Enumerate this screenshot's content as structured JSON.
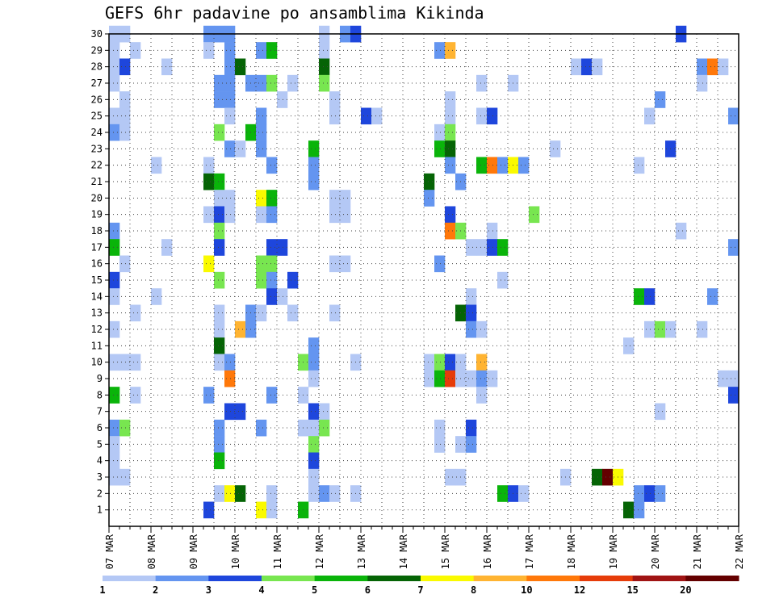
{
  "chart_data": {
    "type": "heatmap",
    "title": "GEFS 6hr padavine po ansamblima Kikinda",
    "xlabel": "",
    "ylabel": "",
    "x_tick_labels": [
      "07 MAR",
      "08 MAR",
      "09 MAR",
      "10 MAR",
      "11 MAR",
      "12 MAR",
      "13 MAR",
      "14 MAR",
      "15 MAR",
      "16 MAR",
      "17 MAR",
      "18 MAR",
      "19 MAR",
      "20 MAR",
      "21 MAR",
      "22 MAR"
    ],
    "x_range_steps": [
      0,
      60
    ],
    "steps_per_day": 4,
    "y_tick_labels": [
      1,
      2,
      3,
      4,
      5,
      6,
      7,
      8,
      9,
      10,
      11,
      12,
      13,
      14,
      15,
      16,
      17,
      18,
      19,
      20,
      21,
      22,
      23,
      24,
      25,
      26,
      27,
      28,
      29,
      30
    ],
    "y_range": [
      0,
      30
    ],
    "grid": true,
    "colorbar": {
      "tick_labels": [
        "1",
        "2",
        "3",
        "4",
        "5",
        "6",
        "7",
        "8",
        "10",
        "12",
        "15",
        "20"
      ],
      "colors": [
        "#b4c8f5",
        "#6495f0",
        "#1e46dc",
        "#78e650",
        "#0ab40a",
        "#056405",
        "#fafa00",
        "#ffb432",
        "#ff780a",
        "#e63c0a",
        "#a01414",
        "#640000"
      ]
    },
    "cells": [
      [
        0,
        30,
        1
      ],
      [
        1,
        30,
        1
      ],
      [
        9,
        30,
        2
      ],
      [
        10,
        30,
        2
      ],
      [
        11,
        30,
        2
      ],
      [
        20,
        30,
        1
      ],
      [
        22,
        30,
        2
      ],
      [
        23,
        30,
        3
      ],
      [
        54,
        30,
        3
      ],
      [
        0,
        29,
        1
      ],
      [
        2,
        29,
        1
      ],
      [
        9,
        29,
        1
      ],
      [
        11,
        29,
        2
      ],
      [
        14,
        29,
        2
      ],
      [
        15,
        29,
        5
      ],
      [
        20,
        29,
        1
      ],
      [
        31,
        29,
        2
      ],
      [
        32,
        29,
        8
      ],
      [
        0,
        28,
        1
      ],
      [
        1,
        28,
        3
      ],
      [
        5,
        28,
        1
      ],
      [
        11,
        28,
        2
      ],
      [
        12,
        28,
        6
      ],
      [
        20,
        28,
        6
      ],
      [
        44,
        28,
        1
      ],
      [
        45,
        28,
        3
      ],
      [
        46,
        28,
        1
      ],
      [
        56,
        28,
        2
      ],
      [
        57,
        28,
        9
      ],
      [
        58,
        28,
        1
      ],
      [
        0,
        27,
        1
      ],
      [
        10,
        27,
        2
      ],
      [
        11,
        27,
        2
      ],
      [
        13,
        27,
        2
      ],
      [
        14,
        27,
        2
      ],
      [
        15,
        27,
        4
      ],
      [
        17,
        27,
        1
      ],
      [
        20,
        27,
        4
      ],
      [
        35,
        27,
        1
      ],
      [
        38,
        27,
        1
      ],
      [
        56,
        27,
        1
      ],
      [
        1,
        26,
        1
      ],
      [
        10,
        26,
        2
      ],
      [
        11,
        26,
        2
      ],
      [
        16,
        26,
        1
      ],
      [
        21,
        26,
        1
      ],
      [
        32,
        26,
        1
      ],
      [
        52,
        26,
        2
      ],
      [
        0,
        25,
        1
      ],
      [
        1,
        25,
        1
      ],
      [
        11,
        25,
        1
      ],
      [
        14,
        25,
        2
      ],
      [
        21,
        25,
        1
      ],
      [
        24,
        25,
        3
      ],
      [
        25,
        25,
        1
      ],
      [
        32,
        25,
        1
      ],
      [
        35,
        25,
        1
      ],
      [
        36,
        25,
        3
      ],
      [
        51,
        25,
        1
      ],
      [
        59,
        25,
        2
      ],
      [
        0,
        24,
        2
      ],
      [
        1,
        24,
        1
      ],
      [
        10,
        24,
        4
      ],
      [
        13,
        24,
        5
      ],
      [
        14,
        24,
        2
      ],
      [
        31,
        24,
        1
      ],
      [
        32,
        24,
        4
      ],
      [
        11,
        23,
        2
      ],
      [
        12,
        23,
        1
      ],
      [
        14,
        23,
        2
      ],
      [
        19,
        23,
        5
      ],
      [
        31,
        23,
        5
      ],
      [
        32,
        23,
        6
      ],
      [
        42,
        23,
        1
      ],
      [
        53,
        23,
        3
      ],
      [
        4,
        22,
        1
      ],
      [
        9,
        22,
        1
      ],
      [
        15,
        22,
        2
      ],
      [
        19,
        22,
        2
      ],
      [
        32,
        22,
        2
      ],
      [
        35,
        22,
        5
      ],
      [
        36,
        22,
        9
      ],
      [
        37,
        22,
        2
      ],
      [
        38,
        22,
        7
      ],
      [
        39,
        22,
        2
      ],
      [
        50,
        22,
        1
      ],
      [
        9,
        21,
        6
      ],
      [
        10,
        21,
        5
      ],
      [
        19,
        21,
        2
      ],
      [
        30,
        21,
        6
      ],
      [
        33,
        21,
        2
      ],
      [
        10,
        20,
        1
      ],
      [
        11,
        20,
        1
      ],
      [
        14,
        20,
        7
      ],
      [
        15,
        20,
        5
      ],
      [
        21,
        20,
        1
      ],
      [
        22,
        20,
        1
      ],
      [
        30,
        20,
        2
      ],
      [
        9,
        19,
        1
      ],
      [
        10,
        19,
        3
      ],
      [
        11,
        19,
        1
      ],
      [
        14,
        19,
        1
      ],
      [
        15,
        19,
        2
      ],
      [
        21,
        19,
        1
      ],
      [
        22,
        19,
        1
      ],
      [
        32,
        19,
        3
      ],
      [
        40,
        19,
        4
      ],
      [
        0,
        18,
        2
      ],
      [
        10,
        18,
        4
      ],
      [
        32,
        18,
        9
      ],
      [
        33,
        18,
        4
      ],
      [
        36,
        18,
        1
      ],
      [
        54,
        18,
        1
      ],
      [
        0,
        17,
        5
      ],
      [
        5,
        17,
        1
      ],
      [
        10,
        17,
        3
      ],
      [
        15,
        17,
        3
      ],
      [
        16,
        17,
        3
      ],
      [
        34,
        17,
        1
      ],
      [
        35,
        17,
        1
      ],
      [
        36,
        17,
        3
      ],
      [
        37,
        17,
        5
      ],
      [
        59,
        17,
        2
      ],
      [
        1,
        16,
        1
      ],
      [
        9,
        16,
        7
      ],
      [
        14,
        16,
        4
      ],
      [
        15,
        16,
        4
      ],
      [
        21,
        16,
        1
      ],
      [
        22,
        16,
        1
      ],
      [
        31,
        16,
        2
      ],
      [
        0,
        15,
        3
      ],
      [
        10,
        15,
        4
      ],
      [
        14,
        15,
        4
      ],
      [
        15,
        15,
        2
      ],
      [
        17,
        15,
        3
      ],
      [
        37,
        15,
        1
      ],
      [
        0,
        14,
        1
      ],
      [
        4,
        14,
        1
      ],
      [
        15,
        14,
        3
      ],
      [
        16,
        14,
        1
      ],
      [
        34,
        14,
        1
      ],
      [
        50,
        14,
        5
      ],
      [
        51,
        14,
        3
      ],
      [
        57,
        14,
        2
      ],
      [
        2,
        13,
        1
      ],
      [
        10,
        13,
        1
      ],
      [
        13,
        13,
        2
      ],
      [
        14,
        13,
        1
      ],
      [
        17,
        13,
        1
      ],
      [
        21,
        13,
        1
      ],
      [
        33,
        13,
        6
      ],
      [
        34,
        13,
        3
      ],
      [
        0,
        12,
        1
      ],
      [
        10,
        12,
        1
      ],
      [
        12,
        12,
        8
      ],
      [
        13,
        12,
        2
      ],
      [
        34,
        12,
        2
      ],
      [
        35,
        12,
        1
      ],
      [
        51,
        12,
        1
      ],
      [
        52,
        12,
        4
      ],
      [
        53,
        12,
        1
      ],
      [
        56,
        12,
        1
      ],
      [
        10,
        11,
        6
      ],
      [
        19,
        11,
        2
      ],
      [
        49,
        11,
        1
      ],
      [
        0,
        10,
        1
      ],
      [
        1,
        10,
        1
      ],
      [
        2,
        10,
        1
      ],
      [
        10,
        10,
        1
      ],
      [
        11,
        10,
        2
      ],
      [
        18,
        10,
        4
      ],
      [
        19,
        10,
        2
      ],
      [
        23,
        10,
        1
      ],
      [
        30,
        10,
        1
      ],
      [
        31,
        10,
        4
      ],
      [
        32,
        10,
        3
      ],
      [
        33,
        10,
        1
      ],
      [
        35,
        10,
        8
      ],
      [
        11,
        9,
        9
      ],
      [
        19,
        9,
        1
      ],
      [
        30,
        9,
        1
      ],
      [
        31,
        9,
        5
      ],
      [
        32,
        9,
        10
      ],
      [
        33,
        9,
        1
      ],
      [
        34,
        9,
        1
      ],
      [
        35,
        9,
        2
      ],
      [
        36,
        9,
        1
      ],
      [
        59,
        9,
        1
      ],
      [
        58,
        9,
        1
      ],
      [
        0,
        8,
        5
      ],
      [
        2,
        8,
        1
      ],
      [
        9,
        8,
        2
      ],
      [
        15,
        8,
        2
      ],
      [
        18,
        8,
        1
      ],
      [
        35,
        8,
        1
      ],
      [
        59,
        8,
        3
      ],
      [
        11,
        7,
        3
      ],
      [
        12,
        7,
        3
      ],
      [
        19,
        7,
        3
      ],
      [
        20,
        7,
        1
      ],
      [
        52,
        7,
        1
      ],
      [
        0,
        6,
        2
      ],
      [
        1,
        6,
        4
      ],
      [
        10,
        6,
        2
      ],
      [
        14,
        6,
        2
      ],
      [
        18,
        6,
        1
      ],
      [
        19,
        6,
        1
      ],
      [
        20,
        6,
        4
      ],
      [
        31,
        6,
        1
      ],
      [
        34,
        6,
        3
      ],
      [
        0,
        5,
        1
      ],
      [
        10,
        5,
        2
      ],
      [
        19,
        5,
        4
      ],
      [
        31,
        5,
        1
      ],
      [
        33,
        5,
        1
      ],
      [
        34,
        5,
        2
      ],
      [
        0,
        4,
        1
      ],
      [
        10,
        4,
        5
      ],
      [
        19,
        4,
        3
      ],
      [
        0,
        3,
        1
      ],
      [
        1,
        3,
        1
      ],
      [
        19,
        3,
        1
      ],
      [
        32,
        3,
        1
      ],
      [
        33,
        3,
        1
      ],
      [
        43,
        3,
        1
      ],
      [
        46,
        3,
        6
      ],
      [
        47,
        3,
        12
      ],
      [
        48,
        3,
        7
      ],
      [
        10,
        2,
        1
      ],
      [
        11,
        2,
        7
      ],
      [
        12,
        2,
        6
      ],
      [
        15,
        2,
        1
      ],
      [
        19,
        2,
        1
      ],
      [
        20,
        2,
        2
      ],
      [
        21,
        2,
        1
      ],
      [
        23,
        2,
        1
      ],
      [
        37,
        2,
        5
      ],
      [
        38,
        2,
        3
      ],
      [
        39,
        2,
        1
      ],
      [
        50,
        2,
        2
      ],
      [
        51,
        2,
        3
      ],
      [
        52,
        2,
        2
      ],
      [
        9,
        1,
        3
      ],
      [
        14,
        1,
        7
      ],
      [
        15,
        1,
        1
      ],
      [
        18,
        1,
        5
      ],
      [
        49,
        1,
        6
      ],
      [
        50,
        1,
        2
      ]
    ]
  }
}
